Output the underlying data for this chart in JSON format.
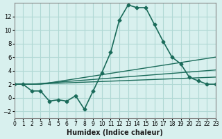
{
  "xlabel": "Humidex (Indice chaleur)",
  "background_color": "#d8f0ee",
  "grid_color": "#b0d8d4",
  "line_color": "#1a6b5a",
  "x_values": [
    0,
    1,
    2,
    3,
    4,
    5,
    6,
    7,
    8,
    9,
    10,
    11,
    12,
    13,
    14,
    15,
    16,
    17,
    18,
    19,
    20,
    21,
    22,
    23
  ],
  "main_line": [
    2.0,
    2.0,
    1.0,
    1.0,
    -0.5,
    -0.3,
    -0.5,
    0.3,
    -1.7,
    1.0,
    3.7,
    6.7,
    11.5,
    13.7,
    13.3,
    13.3,
    10.8,
    8.3,
    6.0,
    5.0,
    3.0,
    2.5,
    2.0,
    2.0
  ],
  "line2": [
    2.0,
    2.0,
    2.0,
    2.0,
    2.2,
    2.4,
    2.6,
    2.8,
    3.0,
    3.2,
    3.4,
    3.6,
    3.8,
    4.0,
    4.2,
    4.4,
    4.6,
    4.8,
    5.0,
    5.2,
    5.4,
    5.6,
    5.8,
    6.0
  ],
  "line3": [
    2.0,
    2.0,
    2.0,
    2.1,
    2.2,
    2.3,
    2.4,
    2.5,
    2.6,
    2.7,
    2.8,
    2.9,
    3.0,
    3.1,
    3.2,
    3.3,
    3.4,
    3.5,
    3.6,
    3.7,
    3.8,
    3.9,
    4.0,
    4.1
  ],
  "line4": [
    2.0,
    2.0,
    2.0,
    2.05,
    2.1,
    2.15,
    2.2,
    2.25,
    2.3,
    2.35,
    2.4,
    2.45,
    2.5,
    2.55,
    2.6,
    2.65,
    2.7,
    2.75,
    2.8,
    2.85,
    2.9,
    2.95,
    3.0,
    3.05
  ],
  "ylim": [
    -3,
    14
  ],
  "yticks": [
    -2,
    0,
    2,
    4,
    6,
    8,
    10,
    12
  ],
  "xlim": [
    0,
    23
  ]
}
